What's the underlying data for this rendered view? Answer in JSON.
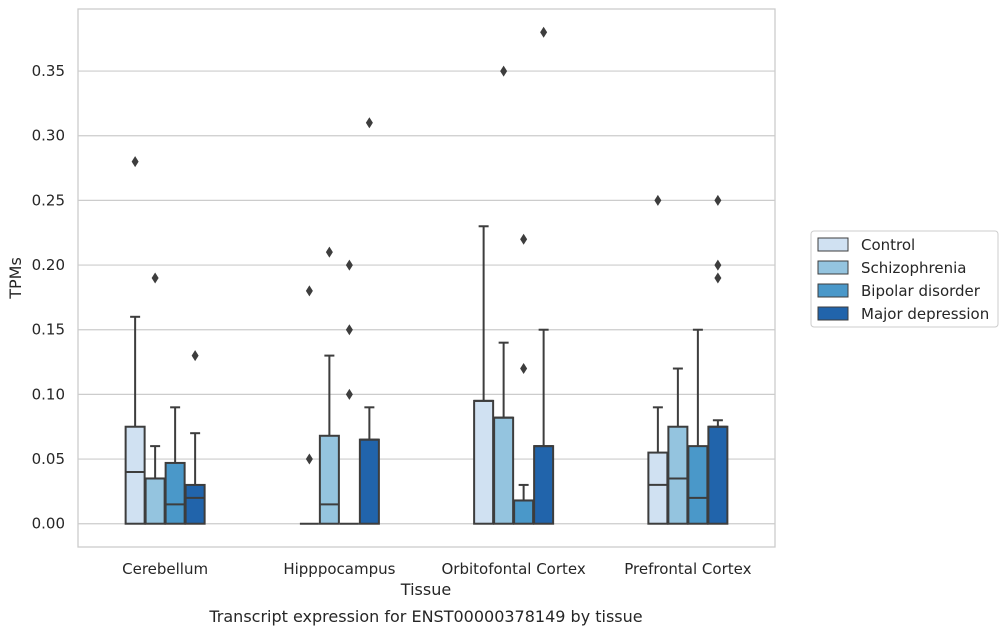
{
  "chart_data": {
    "type": "box",
    "xlabel": "Tissue",
    "ylabel": "TPMs",
    "caption": "Transcript expression for ENST00000378149 by tissue",
    "categories": [
      "Cerebellum",
      "Hipppocampus",
      "Orbitofontal Cortex",
      "Prefrontal Cortex"
    ],
    "yticks": [
      0.0,
      0.05,
      0.1,
      0.15,
      0.2,
      0.25,
      0.3,
      0.35
    ],
    "ytick_labels": [
      "0.00",
      "0.05",
      "0.10",
      "0.15",
      "0.20",
      "0.25",
      "0.30",
      "0.35"
    ],
    "ylim": [
      -0.018,
      0.398
    ],
    "grid": true,
    "legend": {
      "position": "right",
      "entries": [
        "Control",
        "Schizophrenia",
        "Bipolar disorder",
        "Major depression"
      ]
    },
    "series": [
      {
        "name": "Control",
        "color": "#d0e1f2",
        "boxes": [
          {
            "q1": 0.0,
            "median": 0.04,
            "q3": 0.075,
            "whisker_low": 0.0,
            "whisker_high": 0.16,
            "outliers": [
              0.28
            ]
          },
          {
            "q1": 0.0,
            "median": 0.0,
            "q3": 0.0,
            "whisker_low": 0.0,
            "whisker_high": 0.0,
            "outliers": [
              0.05,
              0.18
            ]
          },
          {
            "q1": 0.0,
            "median": 0.095,
            "q3": 0.095,
            "whisker_low": 0.0,
            "whisker_high": 0.23,
            "outliers": []
          },
          {
            "q1": 0.0,
            "median": 0.03,
            "q3": 0.055,
            "whisker_low": 0.0,
            "whisker_high": 0.09,
            "outliers": [
              0.25
            ]
          }
        ]
      },
      {
        "name": "Schizophrenia",
        "color": "#94c4df",
        "boxes": [
          {
            "q1": 0.0,
            "median": 0.035,
            "q3": 0.035,
            "whisker_low": 0.0,
            "whisker_high": 0.06,
            "outliers": [
              0.19
            ]
          },
          {
            "q1": 0.0,
            "median": 0.015,
            "q3": 0.068,
            "whisker_low": 0.0,
            "whisker_high": 0.13,
            "outliers": [
              0.21
            ]
          },
          {
            "q1": 0.0,
            "median": 0.082,
            "q3": 0.082,
            "whisker_low": 0.0,
            "whisker_high": 0.14,
            "outliers": [
              0.35
            ]
          },
          {
            "q1": 0.0,
            "median": 0.035,
            "q3": 0.075,
            "whisker_low": 0.0,
            "whisker_high": 0.12,
            "outliers": []
          }
        ]
      },
      {
        "name": "Bipolar disorder",
        "color": "#4a98c9",
        "boxes": [
          {
            "q1": 0.0,
            "median": 0.015,
            "q3": 0.047,
            "whisker_low": 0.0,
            "whisker_high": 0.09,
            "outliers": []
          },
          {
            "q1": 0.0,
            "median": 0.0,
            "q3": 0.0,
            "whisker_low": 0.0,
            "whisker_high": 0.0,
            "outliers": [
              0.1,
              0.15,
              0.2
            ]
          },
          {
            "q1": 0.0,
            "median": 0.018,
            "q3": 0.018,
            "whisker_low": 0.0,
            "whisker_high": 0.03,
            "outliers": [
              0.12,
              0.22
            ]
          },
          {
            "q1": 0.0,
            "median": 0.02,
            "q3": 0.06,
            "whisker_low": 0.0,
            "whisker_high": 0.15,
            "outliers": []
          }
        ]
      },
      {
        "name": "Major depression",
        "color": "#2164ab",
        "boxes": [
          {
            "q1": 0.0,
            "median": 0.02,
            "q3": 0.03,
            "whisker_low": 0.0,
            "whisker_high": 0.07,
            "outliers": [
              0.13
            ]
          },
          {
            "q1": 0.0,
            "median": 0.065,
            "q3": 0.065,
            "whisker_low": 0.0,
            "whisker_high": 0.09,
            "outliers": [
              0.31
            ]
          },
          {
            "q1": 0.0,
            "median": 0.06,
            "q3": 0.06,
            "whisker_low": 0.0,
            "whisker_high": 0.15,
            "outliers": [
              0.38
            ]
          },
          {
            "q1": 0.0,
            "median": 0.075,
            "q3": 0.075,
            "whisker_low": 0.0,
            "whisker_high": 0.08,
            "outliers": [
              0.19,
              0.2,
              0.25
            ]
          }
        ]
      }
    ]
  }
}
